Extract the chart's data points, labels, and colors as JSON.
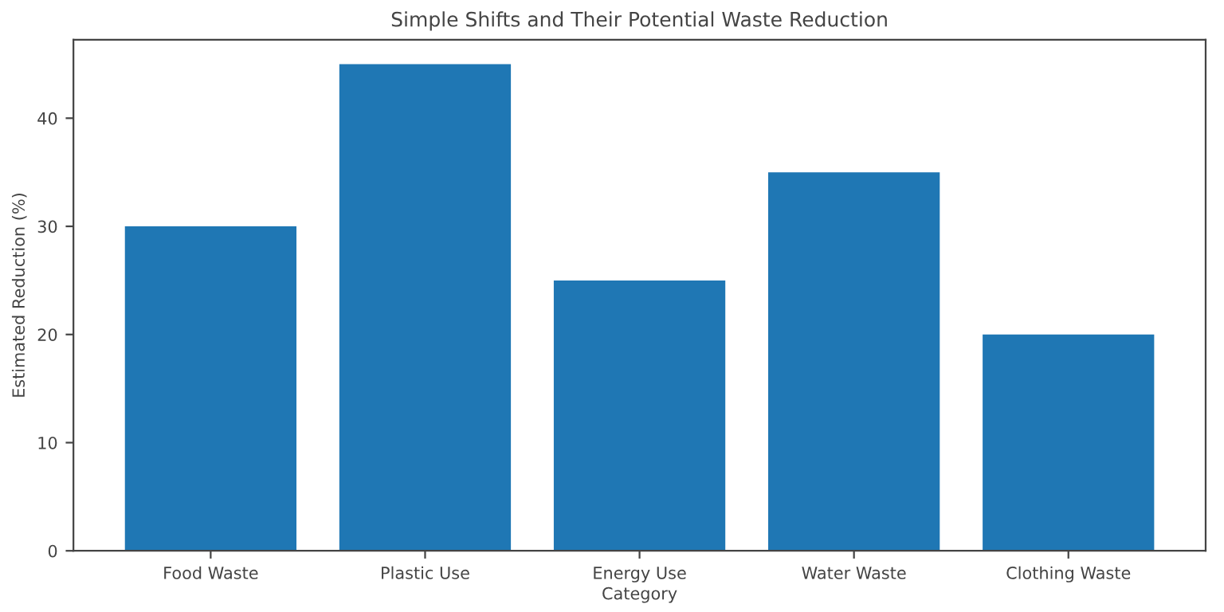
{
  "chart_data": {
    "type": "bar",
    "title": "Simple Shifts and Their Potential Waste Reduction",
    "xlabel": "Category",
    "ylabel": "Estimated Reduction (%)",
    "categories": [
      "Food Waste",
      "Plastic Use",
      "Energy Use",
      "Water Waste",
      "Clothing Waste"
    ],
    "values": [
      30,
      45,
      25,
      35,
      20
    ],
    "color": "#1f77b4",
    "ylim": [
      0,
      47.25
    ],
    "yticks": [
      0,
      10,
      20,
      30,
      40
    ],
    "grid": false
  }
}
